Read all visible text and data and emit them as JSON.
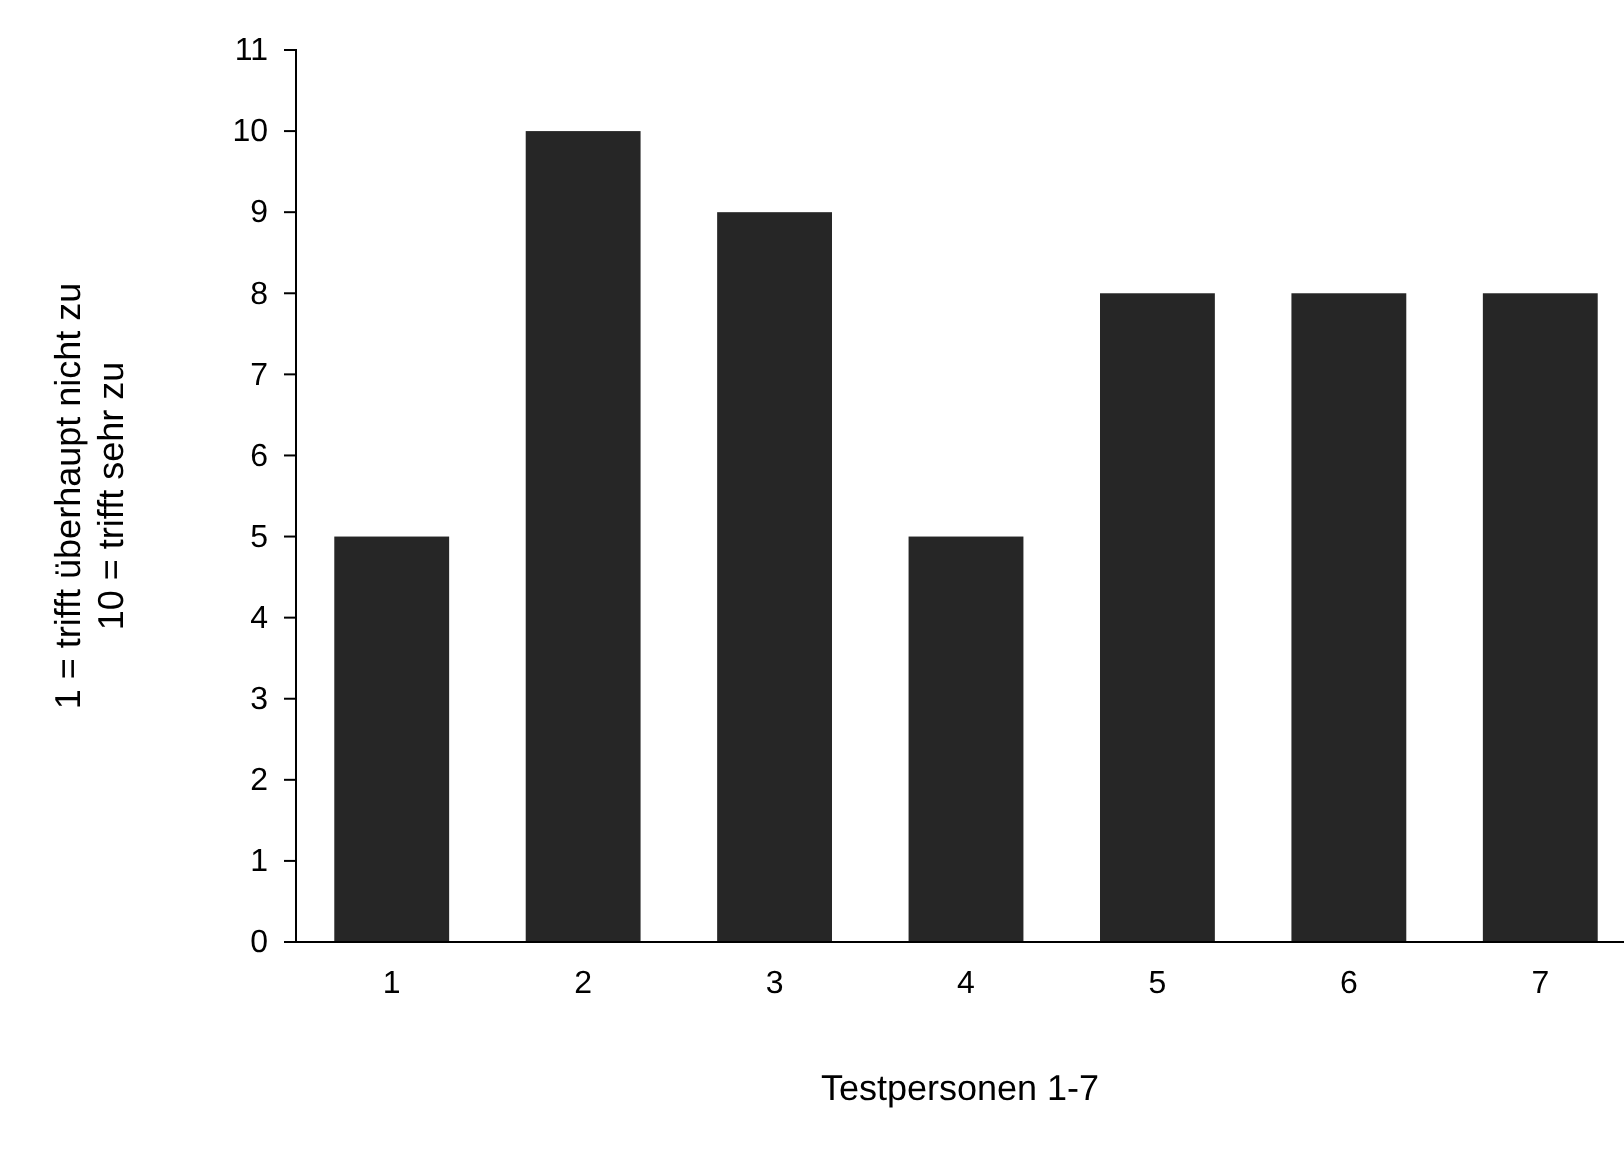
{
  "chart_data": {
    "type": "bar",
    "xlabel": "Testpersonen 1-7",
    "ylabel": "1 = trifft überhaupt nicht zu\n10 = trifft sehr zu",
    "categories": [
      "1",
      "2",
      "3",
      "4",
      "5",
      "6",
      "7"
    ],
    "values": [
      5,
      10,
      9,
      5,
      8,
      8,
      8
    ],
    "color": "#262626",
    "ylim": [
      0,
      11
    ],
    "yticks": [
      0,
      1,
      2,
      3,
      4,
      5,
      6,
      7,
      8,
      9,
      10,
      11
    ],
    "grid": false
  }
}
